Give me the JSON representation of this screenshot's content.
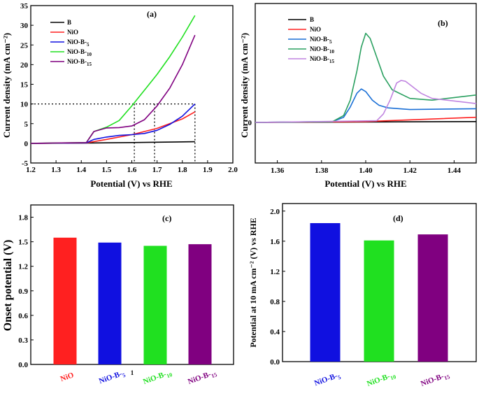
{
  "chart_data": [
    {
      "panel": "(a)",
      "type": "line",
      "xlabel": "Potential (V) vs RHE",
      "ylabel": "Current density (mA cm⁻²)",
      "xlim": [
        1.2,
        2.0
      ],
      "ylim": [
        -5,
        35
      ],
      "xticks": [
        "1.2",
        "1.3",
        "1.4",
        "1.5",
        "1.6",
        "1.7",
        "1.8",
        "1.9",
        "2.0"
      ],
      "yticks": [
        "-5",
        "0",
        "5",
        "10",
        "15",
        "20",
        "25",
        "30",
        "35"
      ],
      "series": [
        {
          "name": "B",
          "color": "#000000",
          "x": [
            1.2,
            1.4,
            1.6,
            1.85
          ],
          "y": [
            0,
            0.05,
            0.2,
            0.4
          ]
        },
        {
          "name": "NiO",
          "color": "#ff2020",
          "x": [
            1.2,
            1.42,
            1.5,
            1.6,
            1.7,
            1.8,
            1.85
          ],
          "y": [
            0,
            0.1,
            1.0,
            2.2,
            3.8,
            6.2,
            8.0
          ]
        },
        {
          "name": "NiO-B-5",
          "color": "#1010e0",
          "x": [
            1.2,
            1.42,
            1.45,
            1.5,
            1.55,
            1.6,
            1.65,
            1.7,
            1.75,
            1.8,
            1.85
          ],
          "y": [
            0,
            0.1,
            1.0,
            1.6,
            2.0,
            2.2,
            2.5,
            3.3,
            4.8,
            6.9,
            10.0
          ]
        },
        {
          "name": "NiO-B-10",
          "color": "#20e020",
          "x": [
            1.2,
            1.42,
            1.45,
            1.5,
            1.55,
            1.6,
            1.65,
            1.7,
            1.75,
            1.8,
            1.85
          ],
          "y": [
            0,
            0.2,
            3.0,
            4.1,
            5.8,
            9.5,
            13.5,
            17.5,
            22.0,
            27.0,
            32.5
          ]
        },
        {
          "name": "NiO-B-15",
          "color": "#800080",
          "x": [
            1.2,
            1.42,
            1.45,
            1.5,
            1.55,
            1.6,
            1.65,
            1.7,
            1.75,
            1.8,
            1.85
          ],
          "y": [
            0,
            0.2,
            3.0,
            3.9,
            4.0,
            4.4,
            6.0,
            9.5,
            14.0,
            20.0,
            27.5
          ]
        }
      ],
      "reference_lines": {
        "y": 10,
        "x": [
          1.61,
          1.69,
          1.85
        ]
      }
    },
    {
      "panel": "(b)",
      "type": "line",
      "xlabel": "Potential (V) vs RHE",
      "ylabel": "Current density (mA cm⁻²)",
      "xlim": [
        1.35,
        1.45
      ],
      "xticks": [
        "1.36",
        "1.38",
        "1.40",
        "1.42",
        "1.44"
      ],
      "yticks": [
        "0"
      ],
      "series": [
        {
          "name": "B",
          "color": "#000000",
          "x": [
            1.35,
            1.45
          ],
          "y": [
            0,
            0.05
          ]
        },
        {
          "name": "NiO",
          "color": "#ff2020",
          "x": [
            1.35,
            1.4,
            1.45
          ],
          "y": [
            0,
            0.05,
            0.3
          ]
        },
        {
          "name": "NiO-B-5",
          "color": "#1a6fd6",
          "x": [
            1.35,
            1.385,
            1.39,
            1.393,
            1.396,
            1.398,
            1.4,
            1.403,
            1.406,
            1.41,
            1.42,
            1.45
          ],
          "y": [
            0,
            0.05,
            0.3,
            0.9,
            1.7,
            1.95,
            1.8,
            1.3,
            1.0,
            0.85,
            0.75,
            0.8
          ]
        },
        {
          "name": "NiO-B-10",
          "color": "#2aa060",
          "x": [
            1.35,
            1.385,
            1.39,
            1.393,
            1.396,
            1.398,
            1.4,
            1.402,
            1.405,
            1.408,
            1.412,
            1.42,
            1.43,
            1.45
          ],
          "y": [
            0,
            0.05,
            0.4,
            1.3,
            3.0,
            4.4,
            5.2,
            4.9,
            3.8,
            2.7,
            1.9,
            1.4,
            1.3,
            1.6
          ]
        },
        {
          "name": "NiO-B-15",
          "color": "#c084e0",
          "x": [
            1.35,
            1.405,
            1.408,
            1.411,
            1.414,
            1.416,
            1.418,
            1.421,
            1.425,
            1.43,
            1.45
          ],
          "y": [
            0,
            0.1,
            0.5,
            1.3,
            2.3,
            2.45,
            2.4,
            2.1,
            1.7,
            1.4,
            1.1
          ]
        }
      ]
    },
    {
      "panel": "(c)",
      "type": "bar",
      "ylabel": "Onset potential (V)",
      "ylim": [
        0,
        1.95
      ],
      "yticks": [
        "0.0",
        "0.3",
        "0.6",
        "0.9",
        "1.2",
        "1.5",
        "1.8"
      ],
      "categories": [
        "NiO",
        "NiO-B-5",
        "NiO-B-10",
        "NiO-B-15"
      ],
      "values": [
        1.55,
        1.49,
        1.45,
        1.47
      ],
      "colors": [
        "#ff2020",
        "#1010e0",
        "#20e020",
        "#800080"
      ],
      "stray_label": "1"
    },
    {
      "panel": "(d)",
      "type": "bar",
      "ylabel": "Potential at 10 mA cm⁻² (V) vs RHE",
      "ylim": [
        0,
        2.1
      ],
      "yticks": [
        "0.0",
        "0.4",
        "0.8",
        "1.2",
        "1.6",
        "2.0"
      ],
      "categories": [
        "NiO-B-5",
        "NiO-B-10",
        "NiO-B-15"
      ],
      "values": [
        1.84,
        1.61,
        1.69
      ],
      "colors": [
        "#1010e0",
        "#20e020",
        "#800080"
      ]
    }
  ]
}
